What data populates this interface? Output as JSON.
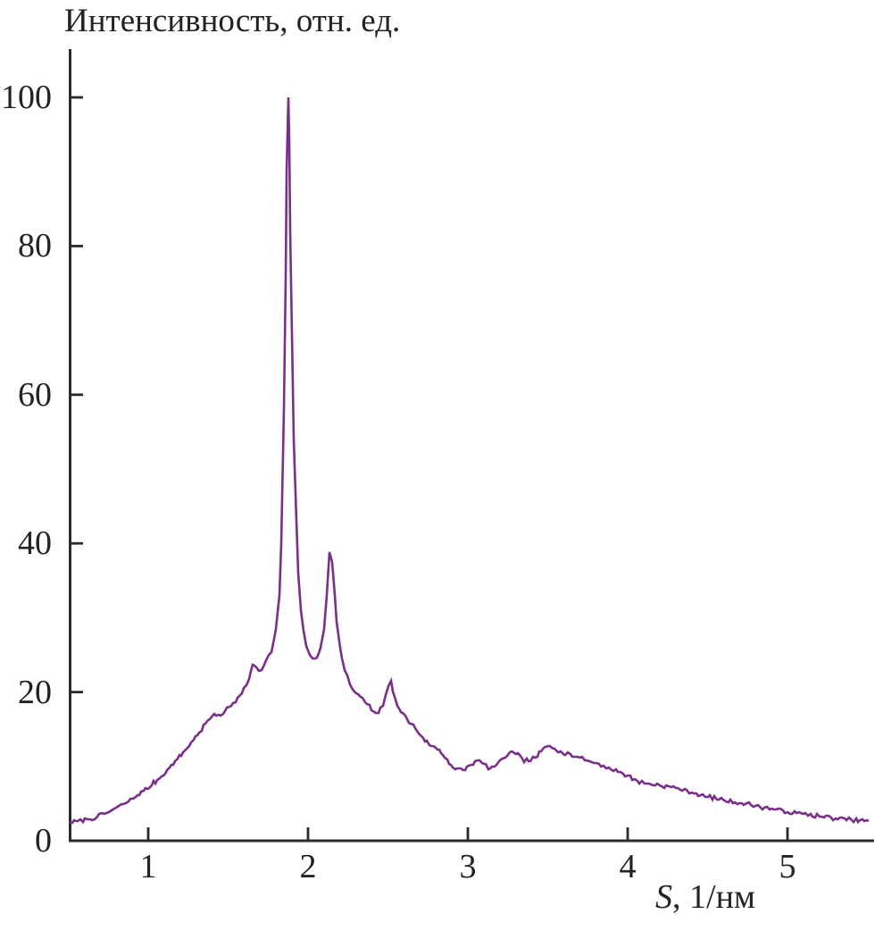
{
  "figure": {
    "y_axis_title": "Интенсивность, отн. ед.",
    "x_axis_symbol": "S",
    "x_axis_rest": ", 1/нм"
  },
  "chart_data": {
    "type": "line",
    "title": "",
    "ylabel": "Интенсивность, отн. ед.",
    "xlabel": "S, 1/нм",
    "x_ticks": [
      1,
      2,
      3,
      4,
      5
    ],
    "y_ticks": [
      0,
      20,
      40,
      60,
      80,
      100
    ],
    "xlim": [
      0.51,
      5.52
    ],
    "ylim": [
      0,
      106
    ],
    "grid": false,
    "legend": "none",
    "line_color": "#7a2f8a",
    "axis_color": "#2b2b2b",
    "noise_amplitude": 0.28,
    "peaks": [
      {
        "s": 1.88,
        "intensity": 100
      },
      {
        "s": 2.14,
        "intensity": 39
      },
      {
        "s": 2.51,
        "intensity": 21.5
      },
      {
        "s": 3.27,
        "intensity": 12
      },
      {
        "s": 3.51,
        "intensity": 12.8
      }
    ],
    "series": [
      {
        "name": "intensity",
        "points": [
          [
            0.51,
            2.5
          ],
          [
            0.56,
            2.6
          ],
          [
            0.62,
            2.9
          ],
          [
            0.68,
            3.2
          ],
          [
            0.74,
            3.7
          ],
          [
            0.8,
            4.4
          ],
          [
            0.86,
            5.1
          ],
          [
            0.92,
            5.9
          ],
          [
            0.97,
            6.7
          ],
          [
            1.02,
            7.5
          ],
          [
            1.07,
            8.4
          ],
          [
            1.12,
            9.5
          ],
          [
            1.17,
            10.7
          ],
          [
            1.22,
            11.9
          ],
          [
            1.27,
            13.2
          ],
          [
            1.32,
            14.6
          ],
          [
            1.36,
            15.8
          ],
          [
            1.4,
            16.8
          ],
          [
            1.44,
            16.9
          ],
          [
            1.48,
            17.4
          ],
          [
            1.52,
            18.2
          ],
          [
            1.56,
            19.2
          ],
          [
            1.6,
            20.5
          ],
          [
            1.63,
            21.8
          ],
          [
            1.655,
            23.7
          ],
          [
            1.68,
            23.2
          ],
          [
            1.71,
            22.9
          ],
          [
            1.74,
            24.3
          ],
          [
            1.77,
            25.4
          ],
          [
            1.8,
            28.5
          ],
          [
            1.82,
            33
          ],
          [
            1.835,
            40
          ],
          [
            1.85,
            58
          ],
          [
            1.86,
            76
          ],
          [
            1.868,
            90
          ],
          [
            1.875,
            100
          ],
          [
            1.882,
            94
          ],
          [
            1.89,
            82
          ],
          [
            1.9,
            68
          ],
          [
            1.91,
            54
          ],
          [
            1.925,
            43
          ],
          [
            1.94,
            36
          ],
          [
            1.955,
            31
          ],
          [
            1.97,
            28.3
          ],
          [
            1.99,
            26.2
          ],
          [
            2.01,
            25.0
          ],
          [
            2.03,
            24.5
          ],
          [
            2.055,
            24.6
          ],
          [
            2.08,
            26.0
          ],
          [
            2.1,
            28.5
          ],
          [
            2.12,
            33
          ],
          [
            2.135,
            38.8
          ],
          [
            2.15,
            37.5
          ],
          [
            2.165,
            33
          ],
          [
            2.18,
            29.5
          ],
          [
            2.2,
            26
          ],
          [
            2.23,
            23
          ],
          [
            2.26,
            21
          ],
          [
            2.3,
            19.8
          ],
          [
            2.33,
            19.3
          ],
          [
            2.37,
            18.4
          ],
          [
            2.41,
            17.4
          ],
          [
            2.44,
            17.2
          ],
          [
            2.47,
            18.2
          ],
          [
            2.5,
            20.8
          ],
          [
            2.52,
            21.5
          ],
          [
            2.545,
            19
          ],
          [
            2.58,
            17.3
          ],
          [
            2.62,
            16.3
          ],
          [
            2.67,
            15.2
          ],
          [
            2.72,
            13.8
          ],
          [
            2.77,
            12.8
          ],
          [
            2.82,
            12.2
          ],
          [
            2.87,
            10.9
          ],
          [
            2.92,
            9.6
          ],
          [
            2.97,
            9.5
          ],
          [
            3.02,
            10.2
          ],
          [
            3.06,
            10.8
          ],
          [
            3.1,
            10.3
          ],
          [
            3.14,
            9.7
          ],
          [
            3.18,
            10.2
          ],
          [
            3.22,
            11.0
          ],
          [
            3.26,
            11.9
          ],
          [
            3.3,
            11.7
          ],
          [
            3.34,
            11.0
          ],
          [
            3.38,
            10.7
          ],
          [
            3.42,
            11.2
          ],
          [
            3.46,
            12.0
          ],
          [
            3.5,
            12.8
          ],
          [
            3.54,
            12.4
          ],
          [
            3.58,
            12.0
          ],
          [
            3.64,
            11.6
          ],
          [
            3.7,
            11.2
          ],
          [
            3.76,
            10.7
          ],
          [
            3.82,
            10.3
          ],
          [
            3.88,
            9.8
          ],
          [
            3.94,
            9.3
          ],
          [
            4.0,
            8.8
          ],
          [
            4.06,
            8.0
          ],
          [
            4.12,
            7.7
          ],
          [
            4.2,
            7.5
          ],
          [
            4.3,
            7.1
          ],
          [
            4.4,
            6.5
          ],
          [
            4.5,
            5.9
          ],
          [
            4.6,
            5.5
          ],
          [
            4.7,
            5.1
          ],
          [
            4.8,
            4.7
          ],
          [
            4.9,
            4.3
          ],
          [
            5.0,
            3.9
          ],
          [
            5.1,
            3.6
          ],
          [
            5.2,
            3.3
          ],
          [
            5.3,
            3.0
          ],
          [
            5.4,
            2.8
          ],
          [
            5.51,
            2.6
          ]
        ]
      }
    ]
  }
}
